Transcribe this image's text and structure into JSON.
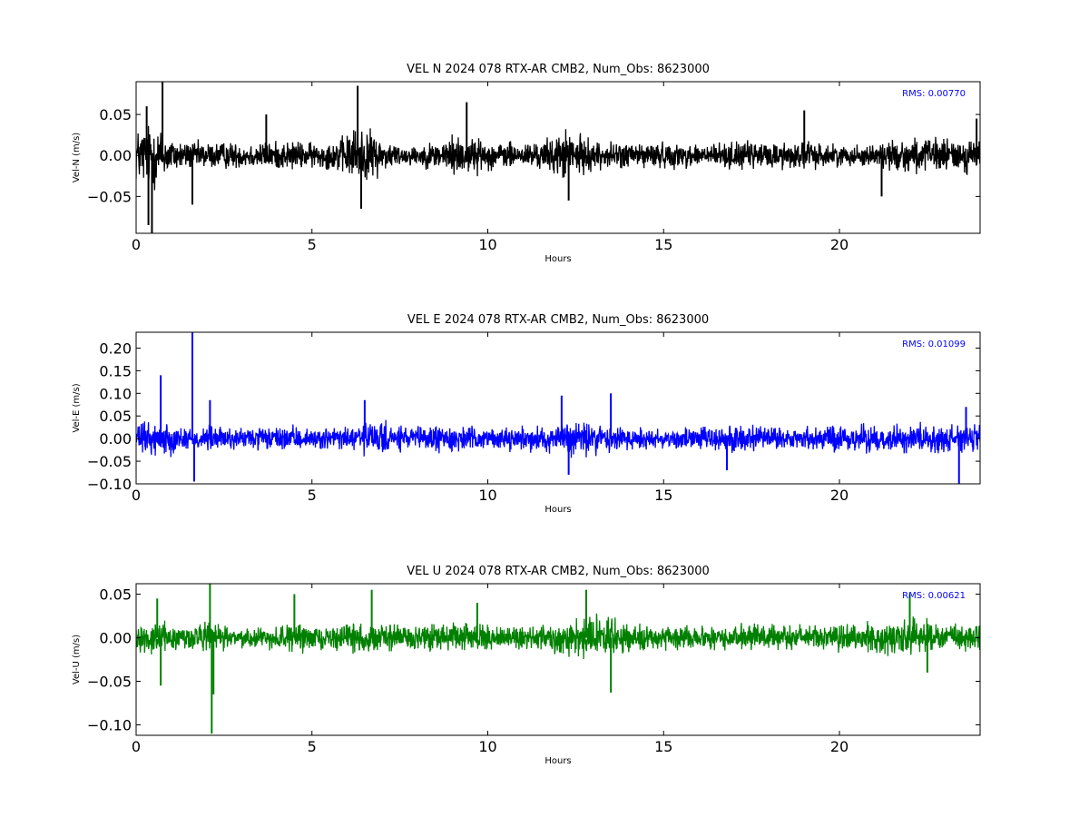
{
  "chart_data": [
    {
      "type": "line",
      "title": "VEL N 2024 078 RTX-AR  CMB2, Num_Obs: 8623000",
      "xlabel": "Hours",
      "ylabel": "Vel-N (m/s)",
      "xlim": [
        0,
        24
      ],
      "ylim": [
        -0.095,
        0.09
      ],
      "xticks": [
        0,
        5,
        10,
        15,
        20
      ],
      "xtick_labels": [
        "0",
        "5",
        "10",
        "15",
        "20"
      ],
      "yticks": [
        -0.05,
        0.0,
        0.05
      ],
      "ytick_labels": [
        "−0.05",
        "0.00",
        "0.05"
      ],
      "annotation": "RMS:  0.00770",
      "color": "#000000",
      "annotation_color": "#0000ff",
      "grid": false,
      "series": [
        {
          "x": [
            0,
            0.5,
            1,
            1.5,
            2,
            2.5,
            3,
            3.5,
            4,
            4.5,
            5,
            5.5,
            6,
            6.25,
            6.5,
            7,
            7.5,
            8,
            8.5,
            9,
            9.5,
            10,
            10.5,
            11,
            11.5,
            12,
            12.25,
            12.5,
            13,
            13.5,
            14,
            14.5,
            15,
            15.5,
            16,
            16.5,
            17,
            17.5,
            18,
            18.5,
            19,
            19.5,
            20,
            20.5,
            21,
            21.5,
            22,
            22.5,
            23,
            23.5,
            24
          ],
          "amplitude": [
            0.04,
            0.05,
            0.025,
            0.02,
            0.02,
            0.02,
            0.018,
            0.02,
            0.02,
            0.022,
            0.018,
            0.02,
            0.03,
            0.045,
            0.04,
            0.025,
            0.015,
            0.015,
            0.02,
            0.03,
            0.028,
            0.02,
            0.02,
            0.018,
            0.02,
            0.03,
            0.04,
            0.03,
            0.022,
            0.018,
            0.02,
            0.02,
            0.018,
            0.018,
            0.018,
            0.018,
            0.02,
            0.02,
            0.02,
            0.02,
            0.022,
            0.018,
            0.015,
            0.015,
            0.018,
            0.022,
            0.025,
            0.025,
            0.025,
            0.025,
            0.025
          ],
          "spikes": [
            [
              0.3,
              0.06
            ],
            [
              0.35,
              -0.085
            ],
            [
              0.45,
              -0.095
            ],
            [
              0.75,
              0.09
            ],
            [
              1.6,
              -0.06
            ],
            [
              3.7,
              0.05
            ],
            [
              6.3,
              0.085
            ],
            [
              6.4,
              -0.065
            ],
            [
              9.4,
              0.065
            ],
            [
              12.3,
              -0.055
            ],
            [
              19.0,
              0.055
            ],
            [
              21.2,
              -0.05
            ],
            [
              23.9,
              0.045
            ]
          ]
        }
      ]
    },
    {
      "type": "line",
      "title": "VEL E 2024 078 RTX-AR  CMB2, Num_Obs: 8623000",
      "xlabel": "Hours",
      "ylabel": "Vel-E (m/s)",
      "xlim": [
        0,
        24
      ],
      "ylim": [
        -0.1,
        0.235
      ],
      "xticks": [
        0,
        5,
        10,
        15,
        20
      ],
      "xtick_labels": [
        "0",
        "5",
        "10",
        "15",
        "20"
      ],
      "yticks": [
        -0.1,
        -0.05,
        0.0,
        0.05,
        0.1,
        0.15,
        0.2
      ],
      "ytick_labels": [
        "−0.10",
        "−0.05",
        "0.00",
        "0.05",
        "0.10",
        "0.15",
        "0.20"
      ],
      "annotation": "RMS:  0.01099",
      "color": "#0000ff",
      "annotation_color": "#0000ff",
      "grid": false,
      "series": [
        {
          "x": [
            0,
            0.5,
            1,
            1.5,
            2,
            2.5,
            3,
            3.5,
            4,
            4.5,
            5,
            5.5,
            6,
            6.5,
            7,
            7.5,
            8,
            8.5,
            9,
            9.5,
            10,
            10.5,
            11,
            11.5,
            12,
            12.5,
            13,
            13.5,
            14,
            14.5,
            15,
            15.5,
            16,
            16.5,
            17,
            17.5,
            18,
            18.5,
            19,
            19.5,
            20,
            20.5,
            21,
            21.5,
            22,
            22.5,
            23,
            23.5,
            24
          ],
          "amplitude": [
            0.04,
            0.045,
            0.04,
            0.03,
            0.035,
            0.03,
            0.03,
            0.03,
            0.03,
            0.03,
            0.025,
            0.03,
            0.035,
            0.045,
            0.04,
            0.035,
            0.03,
            0.035,
            0.035,
            0.03,
            0.025,
            0.03,
            0.03,
            0.03,
            0.045,
            0.05,
            0.045,
            0.04,
            0.035,
            0.03,
            0.03,
            0.03,
            0.03,
            0.035,
            0.04,
            0.035,
            0.03,
            0.03,
            0.03,
            0.035,
            0.035,
            0.035,
            0.035,
            0.035,
            0.035,
            0.035,
            0.04,
            0.04,
            0.035
          ],
          "spikes": [
            [
              0.7,
              0.14
            ],
            [
              1.6,
              0.235
            ],
            [
              1.65,
              -0.095
            ],
            [
              2.1,
              0.085
            ],
            [
              6.5,
              0.085
            ],
            [
              12.1,
              0.095
            ],
            [
              12.3,
              -0.08
            ],
            [
              13.5,
              0.1
            ],
            [
              16.8,
              -0.07
            ],
            [
              23.4,
              -0.1
            ],
            [
              23.6,
              0.07
            ]
          ]
        }
      ]
    },
    {
      "type": "line",
      "title": "VEL U 2024 078 RTX-AR  CMB2, Num_Obs: 8623000",
      "xlabel": "Hours",
      "ylabel": "Vel-U (m/s)",
      "xlim": [
        0,
        24
      ],
      "ylim": [
        -0.112,
        0.062
      ],
      "xticks": [
        0,
        5,
        10,
        15,
        20
      ],
      "xtick_labels": [
        "0",
        "5",
        "10",
        "15",
        "20"
      ],
      "yticks": [
        -0.1,
        -0.05,
        0.0,
        0.05
      ],
      "ytick_labels": [
        "−0.10",
        "−0.05",
        "0.00",
        "0.05"
      ],
      "annotation": "RMS:  0.00621",
      "color": "#008000",
      "annotation_color": "#0000ff",
      "grid": false,
      "series": [
        {
          "x": [
            0,
            0.5,
            1,
            1.5,
            2,
            2.5,
            3,
            3.5,
            4,
            4.5,
            5,
            5.5,
            6,
            6.5,
            7,
            7.5,
            8,
            8.5,
            9,
            9.5,
            10,
            10.5,
            11,
            11.5,
            12,
            12.5,
            13,
            13.5,
            14,
            14.5,
            15,
            15.5,
            16,
            16.5,
            17,
            17.5,
            18,
            18.5,
            19,
            19.5,
            20,
            20.5,
            21,
            21.5,
            22,
            22.5,
            23,
            23.5,
            24
          ],
          "amplitude": [
            0.018,
            0.02,
            0.02,
            0.018,
            0.022,
            0.015,
            0.013,
            0.015,
            0.015,
            0.02,
            0.015,
            0.015,
            0.018,
            0.022,
            0.02,
            0.018,
            0.016,
            0.018,
            0.02,
            0.018,
            0.016,
            0.016,
            0.016,
            0.016,
            0.02,
            0.028,
            0.03,
            0.025,
            0.02,
            0.018,
            0.016,
            0.015,
            0.015,
            0.015,
            0.016,
            0.018,
            0.018,
            0.018,
            0.018,
            0.018,
            0.018,
            0.018,
            0.02,
            0.024,
            0.025,
            0.022,
            0.022,
            0.02,
            0.02
          ],
          "spikes": [
            [
              0.6,
              0.045
            ],
            [
              0.7,
              -0.055
            ],
            [
              2.1,
              0.062
            ],
            [
              2.15,
              -0.11
            ],
            [
              2.2,
              -0.065
            ],
            [
              4.5,
              0.05
            ],
            [
              6.7,
              0.055
            ],
            [
              9.7,
              0.04
            ],
            [
              12.8,
              0.055
            ],
            [
              13.5,
              -0.063
            ],
            [
              22.0,
              0.05
            ],
            [
              22.5,
              -0.04
            ]
          ]
        }
      ]
    }
  ]
}
